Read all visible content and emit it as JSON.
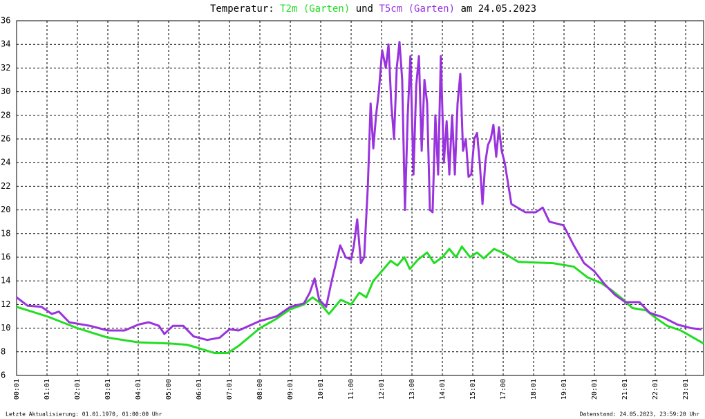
{
  "chart_data": {
    "type": "line",
    "title_parts": [
      "Temperatur:",
      "und",
      "am 24.05.2023"
    ],
    "footer_left": "Letzte Aktualisierung: 01.01.1970, 01:00:00 Uhr",
    "footer_right": "Datenstand: 24.05.2023, 23:59:20 Uhr",
    "grid": true,
    "ylim": [
      6,
      36
    ],
    "yticks": [
      6,
      8,
      10,
      12,
      14,
      16,
      18,
      20,
      22,
      24,
      26,
      28,
      30,
      32,
      34,
      36
    ],
    "xlim": [
      0,
      22.59
    ],
    "xticks": [
      {
        "value": 0,
        "label": "00:01"
      },
      {
        "value": 1,
        "label": "01:01"
      },
      {
        "value": 2,
        "label": "02:01"
      },
      {
        "value": 3,
        "label": "03:01"
      },
      {
        "value": 4,
        "label": "04:01"
      },
      {
        "value": 5,
        "label": "05:00"
      },
      {
        "value": 6,
        "label": "06:01"
      },
      {
        "value": 7,
        "label": "07:01"
      },
      {
        "value": 8,
        "label": "08:00"
      },
      {
        "value": 9,
        "label": "09:01"
      },
      {
        "value": 10,
        "label": "10:01"
      },
      {
        "value": 11,
        "label": "11:00"
      },
      {
        "value": 12,
        "label": "12:01"
      },
      {
        "value": 13,
        "label": "13:00"
      },
      {
        "value": 14,
        "label": "14:01"
      },
      {
        "value": 15,
        "label": "15:01"
      },
      {
        "value": 16,
        "label": "17:00"
      },
      {
        "value": 17,
        "label": "18:01"
      },
      {
        "value": 18,
        "label": "19:01"
      },
      {
        "value": 19,
        "label": "20:01"
      },
      {
        "value": 20,
        "label": "21:01"
      },
      {
        "value": 21,
        "label": "22:01"
      },
      {
        "value": 22,
        "label": "23:01"
      }
    ],
    "series": [
      {
        "name": "T2m (Garten)",
        "color": "#22dd22",
        "x": [
          0,
          1,
          2,
          3,
          4,
          5,
          5.59,
          6,
          6.5,
          6.95,
          7.3,
          8,
          8.55,
          9,
          9.45,
          9.73,
          9.95,
          10.27,
          10.66,
          11,
          11.27,
          11.5,
          11.73,
          12.07,
          12.3,
          12.52,
          12.75,
          12.93,
          13.2,
          13.5,
          13.73,
          14,
          14.23,
          14.45,
          14.64,
          14.91,
          15.14,
          15.36,
          15.7,
          16.05,
          16.5,
          17.64,
          18.32,
          18.77,
          19.23,
          19.57,
          19.91,
          20.25,
          20.7,
          21.05,
          21.39,
          21.84,
          22.18,
          22.59
        ],
        "values": [
          11.8,
          11.0,
          10.0,
          9.2,
          8.8,
          8.7,
          8.6,
          8.3,
          7.9,
          7.9,
          8.5,
          10.0,
          10.8,
          11.6,
          12.0,
          12.6,
          12.2,
          11.2,
          12.4,
          12.0,
          13.0,
          12.6,
          14.0,
          15.0,
          15.7,
          15.3,
          16.0,
          15.0,
          15.8,
          16.4,
          15.5,
          16.0,
          16.7,
          16.0,
          16.9,
          16.0,
          16.4,
          15.9,
          16.7,
          16.3,
          15.6,
          15.5,
          15.2,
          14.3,
          13.8,
          13.2,
          12.5,
          11.7,
          11.5,
          10.8,
          10.2,
          9.8,
          9.3,
          8.7
        ]
      },
      {
        "name": "T5cm (Garten)",
        "color": "#9933dd",
        "x": [
          0,
          0.36,
          0.82,
          1.16,
          1.39,
          1.73,
          2.41,
          3,
          3.55,
          4,
          4.34,
          4.68,
          4.86,
          5.14,
          5.48,
          5.82,
          6.27,
          6.68,
          7,
          7.3,
          8,
          8.55,
          9,
          9.45,
          9.64,
          9.8,
          9.95,
          10.18,
          10.36,
          10.64,
          10.82,
          11,
          11.09,
          11.2,
          11.32,
          11.43,
          11.55,
          11.64,
          11.73,
          11.82,
          11.91,
          12.02,
          12.14,
          12.23,
          12.32,
          12.41,
          12.5,
          12.59,
          12.68,
          12.77,
          12.86,
          12.95,
          13.05,
          13.14,
          13.23,
          13.32,
          13.41,
          13.5,
          13.59,
          13.68,
          13.77,
          13.86,
          13.95,
          14.05,
          14.14,
          14.23,
          14.32,
          14.41,
          14.5,
          14.59,
          14.68,
          14.77,
          14.86,
          14.95,
          15.05,
          15.14,
          15.23,
          15.32,
          15.41,
          15.5,
          15.59,
          15.68,
          15.77,
          15.86,
          15.95,
          16.05,
          16.27,
          16.73,
          17.07,
          17.3,
          17.52,
          17.98,
          18.32,
          18.66,
          19,
          19.34,
          19.68,
          20.02,
          20.48,
          20.82,
          21.27,
          21.73,
          22.18,
          22.52
        ],
        "values": [
          12.6,
          11.9,
          11.8,
          11.2,
          11.4,
          10.5,
          10.2,
          9.8,
          9.8,
          10.3,
          10.5,
          10.2,
          9.5,
          10.2,
          10.2,
          9.3,
          9.0,
          9.2,
          9.9,
          9.8,
          10.6,
          11.0,
          11.8,
          12.1,
          13.0,
          14.2,
          12.4,
          11.8,
          14.0,
          17.0,
          16.0,
          15.8,
          17.0,
          19.2,
          15.5,
          16.0,
          22.0,
          29.0,
          25.2,
          28.0,
          30.0,
          33.5,
          32.0,
          34.0,
          29.0,
          26.0,
          32.0,
          34.2,
          31.0,
          20.0,
          28.0,
          33.0,
          23.0,
          30.5,
          33.0,
          25.0,
          31.0,
          29.0,
          20.0,
          19.8,
          28.0,
          23.0,
          33.0,
          24.0,
          27.5,
          23.0,
          28.0,
          23.0,
          29.0,
          31.5,
          25.0,
          26.0,
          22.8,
          23.0,
          26.0,
          26.5,
          24.0,
          20.5,
          24.0,
          25.5,
          26.0,
          27.2,
          24.5,
          27.0,
          25.0,
          24.0,
          20.5,
          19.8,
          19.8,
          20.2,
          19.0,
          18.7,
          17.0,
          15.5,
          14.8,
          13.7,
          12.8,
          12.2,
          12.2,
          11.3,
          10.9,
          10.3,
          10.0,
          9.9
        ]
      }
    ]
  }
}
